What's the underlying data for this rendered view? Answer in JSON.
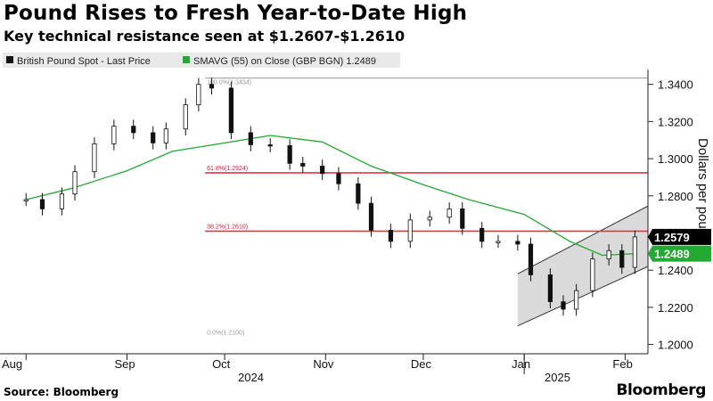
{
  "title": "Pound Rises to Fresh Year-to-Date High",
  "subtitle": "Key technical resistance seen at $1.2607-$1.2610",
  "source": "Source: Bloomberg",
  "brand": "Bloomberg",
  "legend": {
    "series1": "British Pound Spot - Last Price",
    "series2": "SMAVG (55)  on Close (GBP BGN) 1.2489"
  },
  "colors": {
    "candle": "#111111",
    "sma": "#22aa33",
    "fib": "#e8334a",
    "channel": "#d0d0d0",
    "tag_bg1": "#000000",
    "tag_bg2": "#22aa33"
  },
  "chart_data": {
    "type": "line",
    "ylabel": "Dollars per pound",
    "ylim": [
      1.195,
      1.348
    ],
    "y_ticks": [
      "1.3400",
      "1.3200",
      "1.3000",
      "1.2800",
      "1.2400",
      "1.2200",
      "1.2000"
    ],
    "x_ticks": [
      "Aug",
      "Sep",
      "Oct",
      "Nov",
      "Dec",
      "Jan",
      "Feb"
    ],
    "year_labels": [
      "2024",
      "2025"
    ],
    "last_price_label": "1.2579",
    "sma_label": "1.2489",
    "fib_levels": [
      {
        "label": "100.0%(1.3434)",
        "value": 1.3434
      },
      {
        "label": "61.8%(1.2924)",
        "value": 1.2924
      },
      {
        "label": "38.2%(1.2610)",
        "value": 1.261
      },
      {
        "label": "0.0%(1.2100)",
        "value": 1.21
      }
    ],
    "series": [
      {
        "name": "British Pound Spot - Last Price",
        "x": [
          "2024-08-01",
          "2024-08-06",
          "2024-08-12",
          "2024-08-16",
          "2024-08-22",
          "2024-08-28",
          "2024-09-03",
          "2024-09-09",
          "2024-09-13",
          "2024-09-19",
          "2024-09-23",
          "2024-09-27",
          "2024-10-03",
          "2024-10-09",
          "2024-10-15",
          "2024-10-21",
          "2024-10-25",
          "2024-10-31",
          "2024-11-05",
          "2024-11-11",
          "2024-11-15",
          "2024-11-21",
          "2024-11-27",
          "2024-12-03",
          "2024-12-09",
          "2024-12-13",
          "2024-12-19",
          "2024-12-24",
          "2024-12-30",
          "2025-01-03",
          "2025-01-09",
          "2025-01-13",
          "2025-01-17",
          "2025-01-22",
          "2025-01-27",
          "2025-01-31",
          "2025-02-04"
        ],
        "values": [
          1.278,
          1.273,
          1.281,
          1.293,
          1.308,
          1.3175,
          1.314,
          1.3085,
          1.316,
          1.329,
          1.34,
          1.338,
          1.314,
          1.3075,
          1.307,
          1.2975,
          1.296,
          1.292,
          1.2865,
          1.276,
          1.2615,
          1.2555,
          1.267,
          1.2685,
          1.273,
          1.2625,
          1.2555,
          1.2555,
          1.254,
          1.2375,
          1.223,
          1.219,
          1.229,
          1.246,
          1.2505,
          1.2415,
          1.2579
        ]
      },
      {
        "name": "SMAVG (55) on Close",
        "x": [
          "2024-08-01",
          "2024-08-15",
          "2024-09-01",
          "2024-09-15",
          "2024-10-01",
          "2024-10-15",
          "2024-10-31",
          "2024-11-15",
          "2024-12-01",
          "2024-12-15",
          "2025-01-01",
          "2025-01-15",
          "2025-01-25",
          "2025-02-04"
        ],
        "values": [
          1.278,
          1.284,
          1.2935,
          1.304,
          1.3085,
          1.3125,
          1.309,
          1.296,
          1.286,
          1.278,
          1.27,
          1.2555,
          1.248,
          1.2489
        ]
      }
    ]
  }
}
